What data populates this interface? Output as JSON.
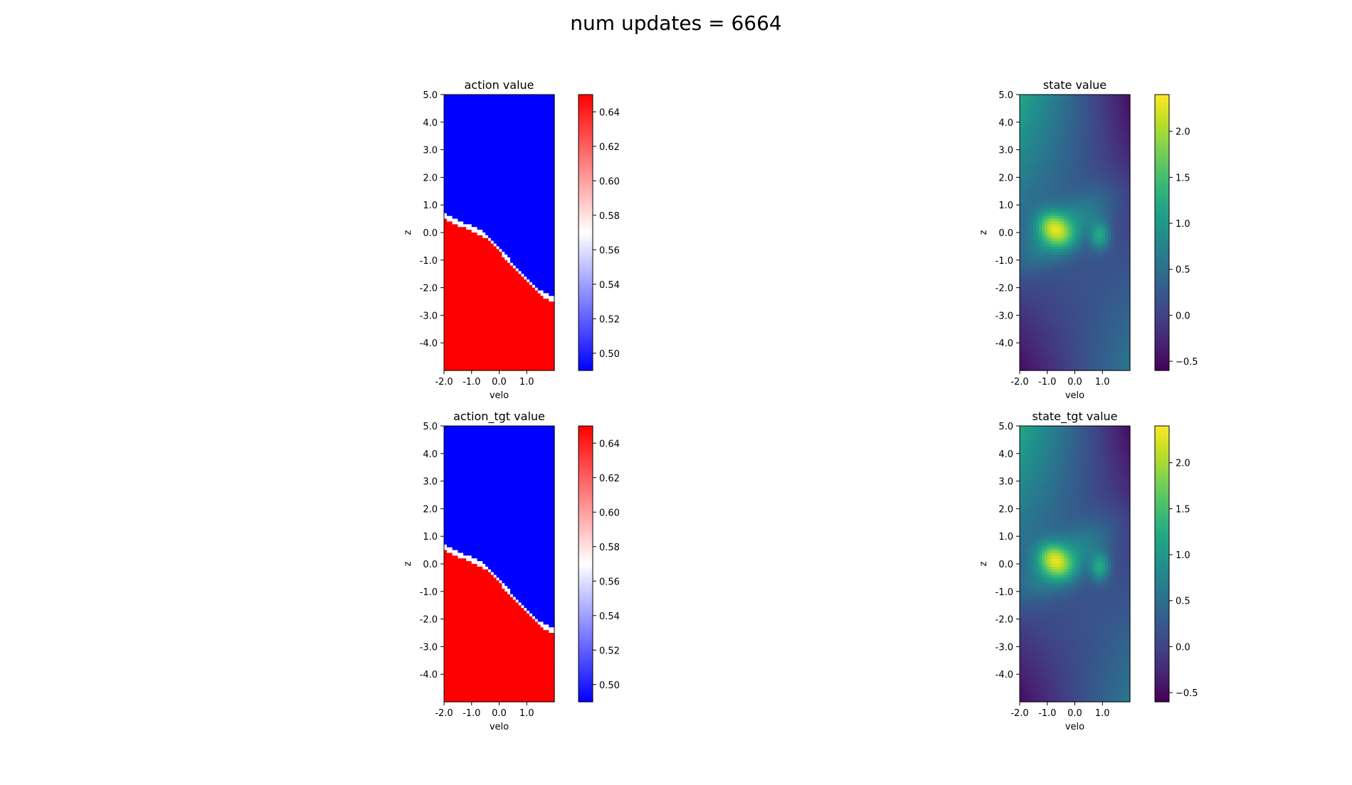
{
  "figure": {
    "suptitle": "num updates = 6664"
  },
  "chart_data": [
    {
      "type": "heatmap",
      "title": "action value",
      "xlabel": "velo",
      "ylabel": "z",
      "xlim": [
        -2.0,
        2.0
      ],
      "ylim": [
        -5.0,
        5.0
      ],
      "xticks": [
        -2.0,
        -1.0,
        0.0,
        1.0
      ],
      "xtick_labels": [
        "-2.0",
        "-1.0",
        "0.0",
        "1.0"
      ],
      "yticks": [
        5.0,
        4.0,
        3.0,
        2.0,
        1.0,
        0.0,
        -1.0,
        -2.0,
        -3.0,
        -4.0
      ],
      "ytick_labels": [
        "5.0",
        "4.0",
        "3.0",
        "2.0",
        "1.0",
        "0.0",
        "-1.0",
        "-2.0",
        "-3.0",
        "-4.0"
      ],
      "colormap": "bwr",
      "clim": [
        0.49,
        0.65
      ],
      "colorbar_ticks": [
        0.5,
        0.52,
        0.54,
        0.56,
        0.58,
        0.6,
        0.62,
        0.64
      ],
      "colorbar_tick_labels": [
        "0.50",
        "0.52",
        "0.54",
        "0.56",
        "0.58",
        "0.60",
        "0.62",
        "0.64"
      ],
      "field": {
        "kind": "boundary",
        "boundary_z_at_velo": [
          [
            -2.0,
            0.6
          ],
          [
            -1.5,
            0.35
          ],
          [
            -1.0,
            0.15
          ],
          [
            -0.5,
            -0.1
          ],
          [
            0.0,
            -0.6
          ],
          [
            0.5,
            -1.2
          ],
          [
            1.0,
            -1.7
          ],
          [
            1.5,
            -2.2
          ],
          [
            2.0,
            -2.45
          ]
        ],
        "below": 0.65,
        "above": 0.49,
        "edge": 0.57
      }
    },
    {
      "type": "heatmap",
      "title": "state value",
      "xlabel": "velo",
      "ylabel": "z",
      "xlim": [
        -2.0,
        2.0
      ],
      "ylim": [
        -5.0,
        5.0
      ],
      "xticks": [
        -2.0,
        -1.0,
        0.0,
        1.0
      ],
      "xtick_labels": [
        "-2.0",
        "-1.0",
        "0.0",
        "1.0"
      ],
      "yticks": [
        5.0,
        4.0,
        3.0,
        2.0,
        1.0,
        0.0,
        -1.0,
        -2.0,
        -3.0,
        -4.0
      ],
      "ytick_labels": [
        "5.0",
        "4.0",
        "3.0",
        "2.0",
        "1.0",
        "0.0",
        "-1.0",
        "-2.0",
        "-3.0",
        "-4.0"
      ],
      "colormap": "viridis",
      "clim": [
        -0.6,
        2.4
      ],
      "colorbar_ticks": [
        -0.5,
        0.0,
        0.5,
        1.0,
        1.5,
        2.0
      ],
      "colorbar_tick_labels": [
        "−0.5",
        "0.0",
        "0.5",
        "1.0",
        "1.5",
        "2.0"
      ],
      "field": {
        "kind": "value",
        "peak": {
          "velo": -0.7,
          "z": 0.1,
          "value": 2.3
        },
        "secondary_peak": {
          "velo": 0.9,
          "z": -0.1,
          "value": 1.5
        },
        "upper_left": 1.2,
        "upper_right": -0.5,
        "lower_left": -0.5,
        "lower_right": 0.6
      }
    },
    {
      "type": "heatmap",
      "title": "action_tgt value",
      "xlabel": "velo",
      "ylabel": "z",
      "xlim": [
        -2.0,
        2.0
      ],
      "ylim": [
        -5.0,
        5.0
      ],
      "xticks": [
        -2.0,
        -1.0,
        0.0,
        1.0
      ],
      "xtick_labels": [
        "-2.0",
        "-1.0",
        "0.0",
        "1.0"
      ],
      "yticks": [
        5.0,
        4.0,
        3.0,
        2.0,
        1.0,
        0.0,
        -1.0,
        -2.0,
        -3.0,
        -4.0
      ],
      "ytick_labels": [
        "5.0",
        "4.0",
        "3.0",
        "2.0",
        "1.0",
        "0.0",
        "-1.0",
        "-2.0",
        "-3.0",
        "-4.0"
      ],
      "colormap": "bwr",
      "clim": [
        0.49,
        0.65
      ],
      "colorbar_ticks": [
        0.5,
        0.52,
        0.54,
        0.56,
        0.58,
        0.6,
        0.62,
        0.64
      ],
      "colorbar_tick_labels": [
        "0.50",
        "0.52",
        "0.54",
        "0.56",
        "0.58",
        "0.60",
        "0.62",
        "0.64"
      ],
      "field": {
        "kind": "boundary",
        "boundary_z_at_velo": [
          [
            -2.0,
            0.6
          ],
          [
            -1.5,
            0.35
          ],
          [
            -1.0,
            0.15
          ],
          [
            -0.5,
            -0.1
          ],
          [
            0.0,
            -0.6
          ],
          [
            0.5,
            -1.2
          ],
          [
            1.0,
            -1.7
          ],
          [
            1.5,
            -2.2
          ],
          [
            2.0,
            -2.45
          ]
        ],
        "below": 0.65,
        "above": 0.49,
        "edge": 0.57
      }
    },
    {
      "type": "heatmap",
      "title": "state_tgt value",
      "xlabel": "velo",
      "ylabel": "z",
      "xlim": [
        -2.0,
        2.0
      ],
      "ylim": [
        -5.0,
        5.0
      ],
      "xticks": [
        -2.0,
        -1.0,
        0.0,
        1.0
      ],
      "xtick_labels": [
        "-2.0",
        "-1.0",
        "0.0",
        "1.0"
      ],
      "yticks": [
        5.0,
        4.0,
        3.0,
        2.0,
        1.0,
        0.0,
        -1.0,
        -2.0,
        -3.0,
        -4.0
      ],
      "ytick_labels": [
        "5.0",
        "4.0",
        "3.0",
        "2.0",
        "1.0",
        "0.0",
        "-1.0",
        "-2.0",
        "-3.0",
        "-4.0"
      ],
      "colormap": "viridis",
      "clim": [
        -0.6,
        2.4
      ],
      "colorbar_ticks": [
        -0.5,
        0.0,
        0.5,
        1.0,
        1.5,
        2.0
      ],
      "colorbar_tick_labels": [
        "−0.5",
        "0.0",
        "0.5",
        "1.0",
        "1.5",
        "2.0"
      ],
      "field": {
        "kind": "value",
        "peak": {
          "velo": -0.7,
          "z": 0.1,
          "value": 2.3
        },
        "secondary_peak": {
          "velo": 0.9,
          "z": -0.1,
          "value": 1.5
        },
        "upper_left": 1.2,
        "upper_right": -0.5,
        "lower_left": -0.5,
        "lower_right": 0.6
      }
    }
  ]
}
